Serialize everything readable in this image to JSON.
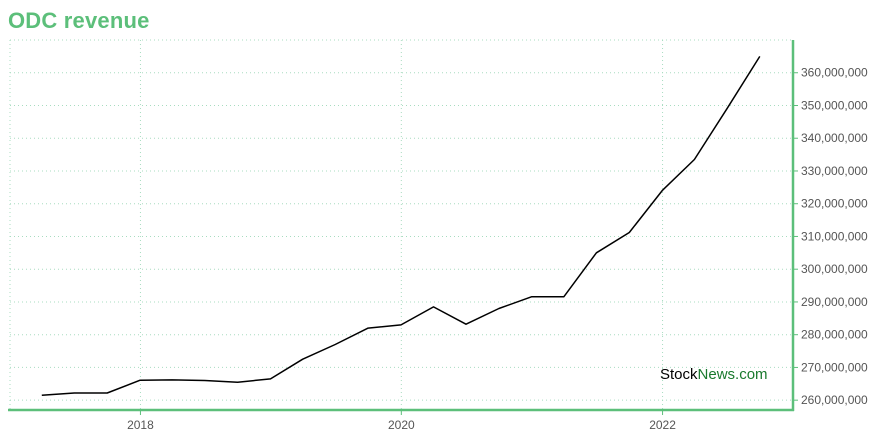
{
  "chart_data": {
    "type": "line",
    "title": "ODC revenue",
    "xlabel": "",
    "ylabel": "",
    "x_ticks": [
      "2018",
      "2020",
      "2022"
    ],
    "y_ticks": [
      "260,000,000",
      "270,000,000",
      "280,000,000",
      "290,000,000",
      "300,000,000",
      "310,000,000",
      "320,000,000",
      "330,000,000",
      "340,000,000",
      "350,000,000",
      "360,000,000"
    ],
    "ylim": [
      257000000,
      370000000
    ],
    "xlim": [
      "2017-01-01",
      "2023-01-01"
    ],
    "grid": true,
    "series": [
      {
        "x": [
          "2017-03-31",
          "2017-06-30",
          "2017-09-30",
          "2017-12-31",
          "2018-03-31",
          "2018-06-30",
          "2018-09-30",
          "2018-12-31",
          "2019-03-31",
          "2019-06-30",
          "2019-09-30",
          "2019-12-31",
          "2020-03-31",
          "2020-06-30",
          "2020-09-30",
          "2020-12-31",
          "2021-03-31",
          "2021-06-30",
          "2021-09-30",
          "2021-12-31",
          "2022-03-31",
          "2022-06-30",
          "2022-09-30"
        ],
        "values": [
          261500000,
          262200000,
          262200000,
          266100000,
          266200000,
          266000000,
          265500000,
          266500000,
          272500000,
          277000000,
          282000000,
          283000000,
          288500000,
          283200000,
          288000000,
          291600000,
          291600000,
          305000000,
          311200000,
          324000000,
          333500000,
          349000000,
          365000000
        ]
      }
    ],
    "line_color": "#000000",
    "axis_color": "#5cbf7a",
    "grid_color": "#a8dcc0"
  },
  "watermark": {
    "part1": "Stock",
    "part2": "News",
    "part3": ".com",
    "color1": "#000000",
    "color2": "#1a7a2e"
  }
}
